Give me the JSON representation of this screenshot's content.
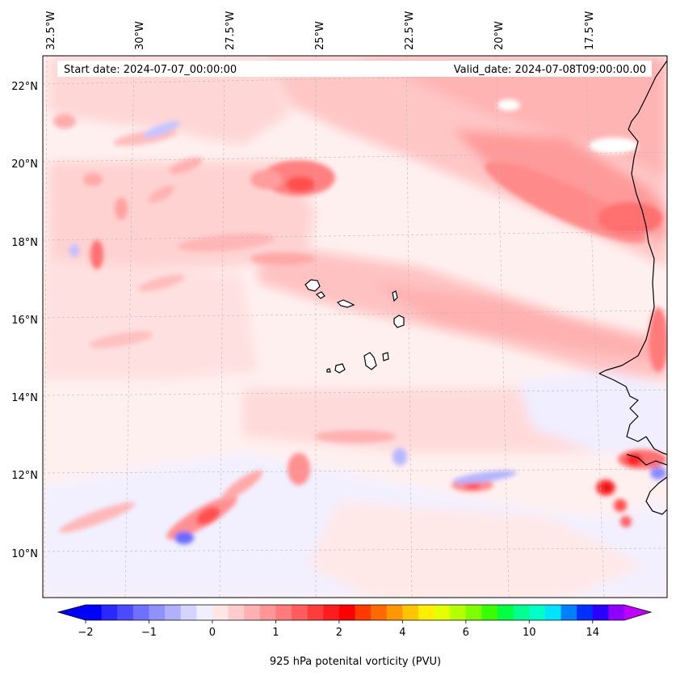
{
  "header": {
    "start_date": "Start date: 2024-07-07_00:00:00",
    "valid_date": "Valid_date: 2024-07-08T09:00:00.00"
  },
  "longitude_labels": [
    "32.5°W",
    "30°W",
    "27.5°W",
    "25°W",
    "22.5°W",
    "20°W",
    "17.5°W"
  ],
  "latitude_labels": [
    "22°N",
    "20°N",
    "18°N",
    "16°N",
    "14°N",
    "12°N",
    "10°N"
  ],
  "colorbar": {
    "label": "925 hPa potenital vorticity (PVU)",
    "tick_labels": [
      "−2",
      "−1",
      "0",
      "1",
      "2",
      "4",
      "6",
      "10",
      "14"
    ],
    "colors": [
      "#0000ff",
      "#2828ff",
      "#4a4aff",
      "#7070ff",
      "#9090ff",
      "#b0b0ff",
      "#d4d4ff",
      "#efefff",
      "#ffe6e6",
      "#ffcccc",
      "#ffb0b0",
      "#ff9696",
      "#ff7a7a",
      "#ff5c5c",
      "#ff3c3c",
      "#ff1c1c",
      "#ff0000",
      "#ff3a00",
      "#ff6a00",
      "#ff9800",
      "#ffc400",
      "#ffee00",
      "#e4ff00",
      "#b4ff00",
      "#7cff00",
      "#38ff00",
      "#00ff40",
      "#00ff90",
      "#00ffc8",
      "#00e4ff",
      "#0080ff",
      "#0030ff",
      "#2a00ff",
      "#9000ff"
    ],
    "low_extend_color": "#0000ff",
    "high_extend_color": "#c000ff"
  }
}
